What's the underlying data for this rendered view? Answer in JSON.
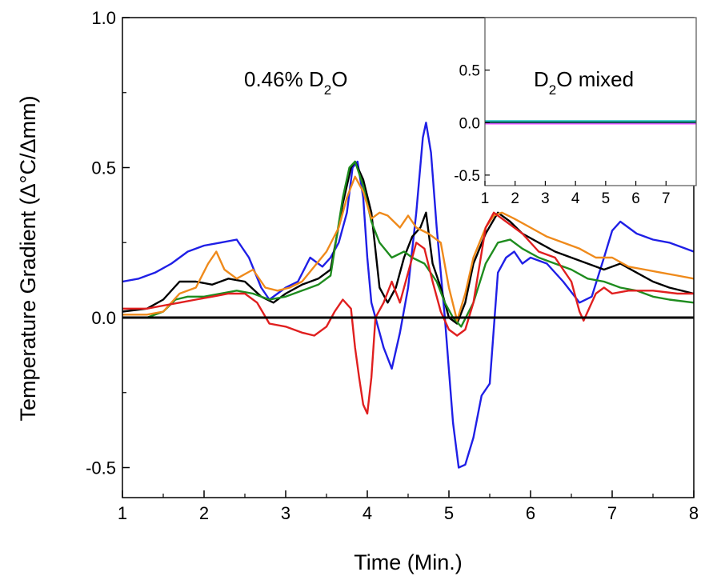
{
  "chart_data": {
    "type": "line",
    "xlabel": "Time  (Min.)",
    "ylabel": "Temperature Gradient (Δ°C/Δmm)",
    "xlim": [
      1,
      8
    ],
    "ylim": [
      -0.6,
      1.0
    ],
    "xticks": [
      "1",
      "2",
      "3",
      "4",
      "5",
      "6",
      "7",
      "8"
    ],
    "yticks": [
      "-0.5",
      "0.0",
      "0.5",
      "1.0"
    ],
    "grid": false,
    "zero_line": true,
    "annotation": {
      "text": "0.46% D",
      "sub": "2",
      "tail": "O"
    },
    "series": [
      {
        "color": "#1f1fe6",
        "x": [
          1.0,
          1.2,
          1.4,
          1.6,
          1.8,
          2.0,
          2.2,
          2.4,
          2.55,
          2.7,
          2.8,
          2.9,
          3.0,
          3.15,
          3.3,
          3.45,
          3.55,
          3.65,
          3.75,
          3.82,
          3.88,
          3.95,
          4.0,
          4.05,
          4.1,
          4.2,
          4.3,
          4.4,
          4.5,
          4.6,
          4.68,
          4.72,
          4.78,
          4.85,
          4.95,
          5.05,
          5.12,
          5.2,
          5.3,
          5.4,
          5.5,
          5.6,
          5.7,
          5.8,
          5.9,
          6.0,
          6.2,
          6.4,
          6.6,
          6.75,
          6.9,
          7.0,
          7.1,
          7.3,
          7.5,
          7.7,
          8.0
        ],
        "y": [
          0.12,
          0.13,
          0.15,
          0.18,
          0.22,
          0.24,
          0.25,
          0.26,
          0.2,
          0.1,
          0.06,
          0.08,
          0.1,
          0.12,
          0.2,
          0.17,
          0.2,
          0.25,
          0.35,
          0.5,
          0.52,
          0.4,
          0.2,
          0.05,
          0.0,
          -0.1,
          -0.17,
          -0.05,
          0.1,
          0.35,
          0.6,
          0.65,
          0.55,
          0.3,
          0.0,
          -0.35,
          -0.5,
          -0.49,
          -0.4,
          -0.26,
          -0.22,
          0.15,
          0.2,
          0.22,
          0.18,
          0.2,
          0.18,
          0.12,
          0.05,
          0.07,
          0.2,
          0.29,
          0.32,
          0.28,
          0.26,
          0.25,
          0.22
        ]
      },
      {
        "color": "#000000",
        "x": [
          1.0,
          1.3,
          1.5,
          1.7,
          1.9,
          2.1,
          2.3,
          2.5,
          2.7,
          2.85,
          3.0,
          3.2,
          3.4,
          3.55,
          3.7,
          3.8,
          3.85,
          3.95,
          4.05,
          4.15,
          4.25,
          4.35,
          4.45,
          4.55,
          4.65,
          4.72,
          4.8,
          4.9,
          5.0,
          5.1,
          5.2,
          5.3,
          5.45,
          5.6,
          5.75,
          5.9,
          6.1,
          6.3,
          6.5,
          6.7,
          6.9,
          7.1,
          7.3,
          7.5,
          7.7,
          8.0
        ],
        "y": [
          0.02,
          0.03,
          0.06,
          0.12,
          0.12,
          0.11,
          0.13,
          0.12,
          0.07,
          0.05,
          0.08,
          0.11,
          0.13,
          0.16,
          0.38,
          0.5,
          0.52,
          0.46,
          0.35,
          0.1,
          0.05,
          0.1,
          0.2,
          0.27,
          0.3,
          0.35,
          0.18,
          0.1,
          0.0,
          -0.02,
          0.05,
          0.18,
          0.28,
          0.35,
          0.32,
          0.28,
          0.25,
          0.22,
          0.2,
          0.18,
          0.16,
          0.18,
          0.15,
          0.12,
          0.1,
          0.08
        ]
      },
      {
        "color": "#1e8c1e",
        "x": [
          1.0,
          1.3,
          1.5,
          1.65,
          1.8,
          2.0,
          2.2,
          2.4,
          2.6,
          2.8,
          3.0,
          3.2,
          3.4,
          3.55,
          3.7,
          3.78,
          3.85,
          3.95,
          4.05,
          4.15,
          4.3,
          4.45,
          4.55,
          4.7,
          4.85,
          4.95,
          5.05,
          5.15,
          5.3,
          5.45,
          5.6,
          5.75,
          5.9,
          6.1,
          6.3,
          6.5,
          6.7,
          6.9,
          7.1,
          7.3,
          7.5,
          7.7,
          8.0
        ],
        "y": [
          0.0,
          0.0,
          0.02,
          0.06,
          0.07,
          0.07,
          0.08,
          0.09,
          0.08,
          0.06,
          0.07,
          0.09,
          0.11,
          0.14,
          0.4,
          0.5,
          0.52,
          0.44,
          0.32,
          0.25,
          0.2,
          0.22,
          0.2,
          0.18,
          0.12,
          0.05,
          0.0,
          -0.03,
          0.05,
          0.18,
          0.25,
          0.26,
          0.23,
          0.2,
          0.18,
          0.16,
          0.13,
          0.12,
          0.1,
          0.09,
          0.07,
          0.06,
          0.05
        ]
      },
      {
        "color": "#ef8a1b",
        "x": [
          1.0,
          1.3,
          1.5,
          1.7,
          1.9,
          2.05,
          2.15,
          2.25,
          2.4,
          2.6,
          2.75,
          2.9,
          3.05,
          3.2,
          3.35,
          3.5,
          3.65,
          3.75,
          3.85,
          3.95,
          4.05,
          4.15,
          4.25,
          4.4,
          4.5,
          4.6,
          4.75,
          4.9,
          5.0,
          5.1,
          5.2,
          5.3,
          5.45,
          5.55,
          5.65,
          5.8,
          6.0,
          6.2,
          6.4,
          6.6,
          6.8,
          7.0,
          7.2,
          7.4,
          7.6,
          7.8,
          8.0
        ],
        "y": [
          0.01,
          0.01,
          0.02,
          0.08,
          0.1,
          0.18,
          0.22,
          0.16,
          0.13,
          0.16,
          0.1,
          0.09,
          0.1,
          0.12,
          0.17,
          0.22,
          0.3,
          0.4,
          0.47,
          0.42,
          0.33,
          0.35,
          0.34,
          0.3,
          0.34,
          0.3,
          0.28,
          0.25,
          0.1,
          -0.01,
          0.08,
          0.2,
          0.3,
          0.34,
          0.35,
          0.33,
          0.3,
          0.27,
          0.25,
          0.23,
          0.2,
          0.2,
          0.17,
          0.16,
          0.15,
          0.14,
          0.13
        ]
      },
      {
        "color": "#e01f1f",
        "x": [
          1.0,
          1.3,
          1.5,
          1.7,
          1.9,
          2.1,
          2.3,
          2.5,
          2.65,
          2.8,
          3.0,
          3.2,
          3.35,
          3.5,
          3.6,
          3.7,
          3.8,
          3.85,
          3.9,
          3.95,
          4.0,
          4.05,
          4.1,
          4.2,
          4.3,
          4.4,
          4.5,
          4.6,
          4.7,
          4.8,
          4.9,
          5.0,
          5.1,
          5.2,
          5.3,
          5.45,
          5.55,
          5.7,
          5.9,
          6.1,
          6.3,
          6.5,
          6.6,
          6.65,
          6.7,
          6.8,
          6.9,
          7.0,
          7.2,
          7.5,
          7.8,
          8.0
        ],
        "y": [
          0.03,
          0.03,
          0.04,
          0.05,
          0.06,
          0.07,
          0.08,
          0.08,
          0.05,
          -0.02,
          -0.03,
          -0.05,
          -0.06,
          -0.03,
          0.02,
          0.06,
          0.03,
          -0.1,
          -0.2,
          -0.29,
          -0.32,
          -0.2,
          0.0,
          0.05,
          0.12,
          0.05,
          0.15,
          0.25,
          0.23,
          0.12,
          0.02,
          -0.04,
          -0.06,
          -0.04,
          0.05,
          0.3,
          0.35,
          0.32,
          0.28,
          0.22,
          0.2,
          0.12,
          0.02,
          -0.01,
          0.02,
          0.08,
          0.1,
          0.08,
          0.09,
          0.09,
          0.08,
          0.08
        ]
      }
    ],
    "inset": {
      "annotation": {
        "text": "D",
        "sub": "2",
        "tail": "O mixed"
      },
      "xlim": [
        1,
        8
      ],
      "ylim": [
        -0.6,
        1.0
      ],
      "xticks": [
        "1",
        "2",
        "3",
        "4",
        "5",
        "6",
        "7"
      ],
      "yticks": [
        "-0.5",
        "0.0",
        "0.5"
      ],
      "series": [
        {
          "color": "#ff66ff",
          "x": [
            1,
            8
          ],
          "y": [
            -0.01,
            -0.01
          ]
        },
        {
          "color": "#1f1fe6",
          "x": [
            1,
            8
          ],
          "y": [
            0.0,
            0.0
          ]
        },
        {
          "color": "#1e8c1e",
          "x": [
            1,
            8
          ],
          "y": [
            0.005,
            0.005
          ]
        },
        {
          "color": "#000000",
          "x": [
            1,
            8
          ],
          "y": [
            0.01,
            0.01
          ]
        },
        {
          "color": "#20c0c0",
          "x": [
            1,
            8
          ],
          "y": [
            0.015,
            0.015
          ]
        }
      ]
    }
  }
}
